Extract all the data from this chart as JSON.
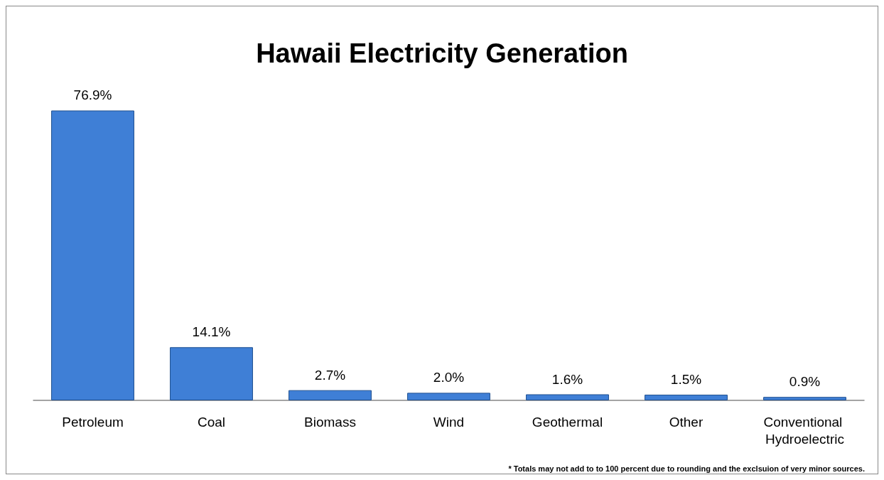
{
  "chart_data": {
    "type": "bar",
    "title": "Hawaii Electricity Generation",
    "categories": [
      "Petroleum",
      "Coal",
      "Biomass",
      "Wind",
      "Geothermal",
      "Other",
      "Conventional Hydroelectric"
    ],
    "values": [
      76.9,
      14.1,
      2.7,
      2.0,
      1.6,
      1.5,
      0.9
    ],
    "value_labels": [
      "76.9%",
      "14.1%",
      "2.7%",
      "2.0%",
      "1.6%",
      "1.5%",
      "0.9%"
    ],
    "color": "#3f7fd6",
    "annotations": [
      "* Totals may not add to to 100 percent due to rounding and the exclsuion of very minor sources."
    ]
  }
}
